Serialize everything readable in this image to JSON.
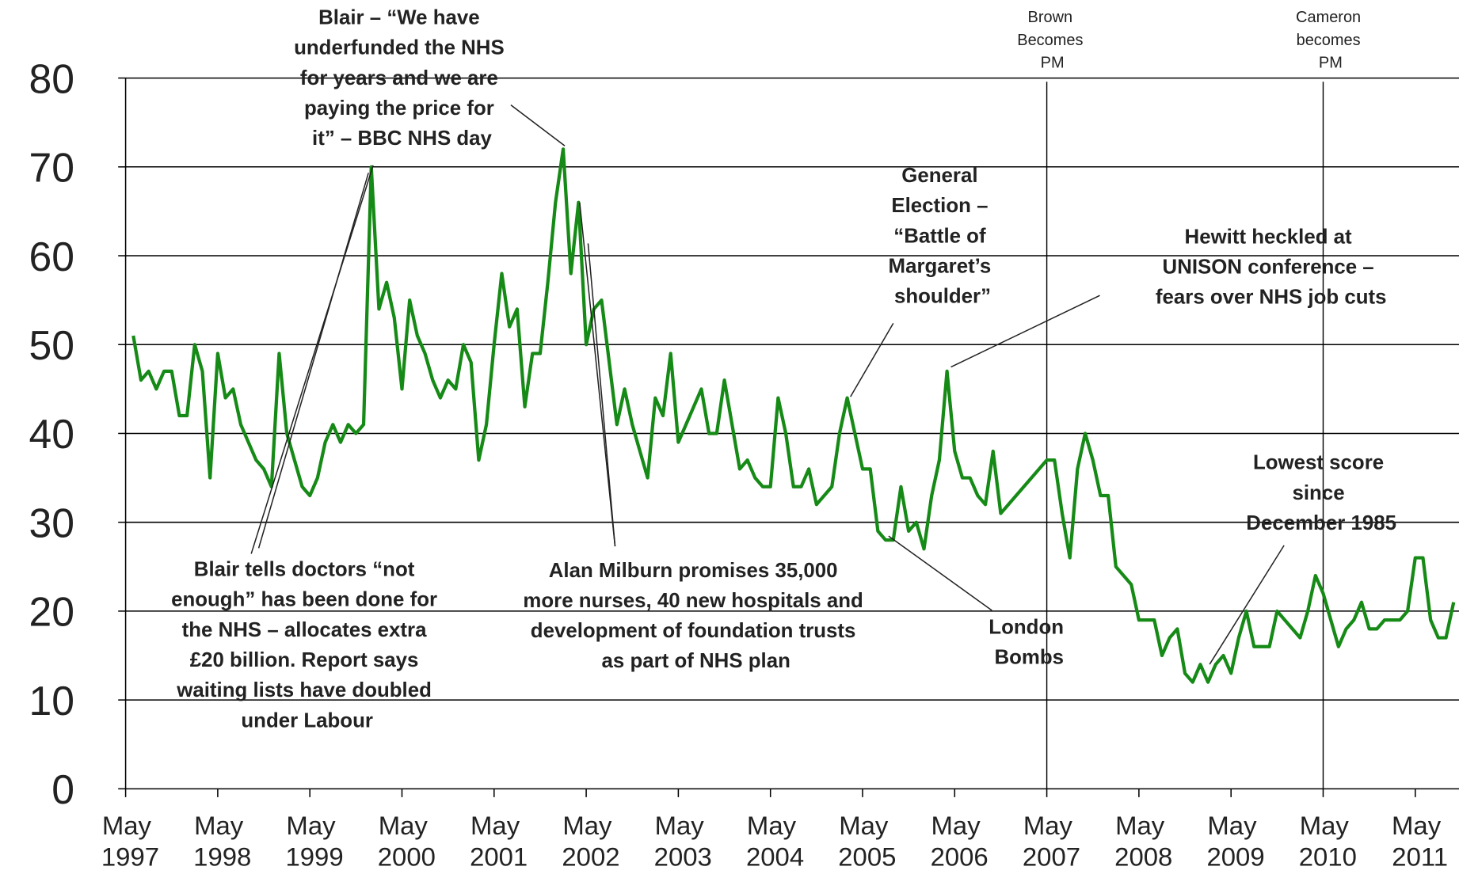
{
  "chart_data": {
    "type": "line",
    "x": [
      "1997-06",
      "1997-07",
      "1997-08",
      "1997-09",
      "1997-10",
      "1997-11",
      "1997-12",
      "1998-01",
      "1998-02",
      "1998-03",
      "1998-04",
      "1998-05",
      "1998-06",
      "1998-07",
      "1998-08",
      "1998-09",
      "1998-10",
      "1998-11",
      "1998-12",
      "1999-01",
      "1999-02",
      "1999-03",
      "1999-04",
      "1999-05",
      "1999-06",
      "1999-07",
      "1999-08",
      "1999-09",
      "1999-10",
      "1999-11",
      "1999-12",
      "2000-01",
      "2000-02",
      "2000-03",
      "2000-04",
      "2000-05",
      "2000-06",
      "2000-07",
      "2000-08",
      "2000-09",
      "2000-10",
      "2000-11",
      "2000-12",
      "2001-01",
      "2001-02",
      "2001-03",
      "2001-04",
      "2001-05",
      "2001-06",
      "2001-07",
      "2001-08",
      "2001-09",
      "2001-10",
      "2001-11",
      "2001-12",
      "2002-01",
      "2002-02",
      "2002-03",
      "2002-04",
      "2002-05",
      "2002-06",
      "2002-07",
      "2002-08",
      "2002-09",
      "2002-10",
      "2002-11",
      "2002-12",
      "2003-01",
      "2003-02",
      "2003-03",
      "2003-04",
      "2003-05",
      "2003-06",
      "2003-07",
      "2003-08",
      "2003-09",
      "2003-10",
      "2003-11",
      "2003-12",
      "2004-01",
      "2004-02",
      "2004-03",
      "2004-04",
      "2004-05",
      "2004-06",
      "2004-07",
      "2004-08",
      "2004-09",
      "2004-10",
      "2004-11",
      "2004-12",
      "2005-01",
      "2005-02",
      "2005-03",
      "2005-04",
      "2005-05",
      "2005-06",
      "2005-07",
      "2005-08",
      "2005-09",
      "2005-10",
      "2005-11",
      "2005-12",
      "2006-01",
      "2006-02",
      "2006-03",
      "2006-04",
      "2006-05",
      "2006-06",
      "2006-07",
      "2006-08",
      "2006-09",
      "2006-10",
      "2006-11",
      "2007-04",
      "2007-05",
      "2007-06",
      "2007-07",
      "2007-08",
      "2007-09",
      "2007-10",
      "2007-11",
      "2007-12",
      "2008-01",
      "2008-02",
      "2008-03",
      "2008-04",
      "2008-05",
      "2008-06",
      "2008-07",
      "2008-08",
      "2008-09",
      "2008-10",
      "2008-11",
      "2008-12",
      "2009-01",
      "2009-02",
      "2009-03",
      "2009-04",
      "2009-05",
      "2009-06",
      "2009-07",
      "2009-08",
      "2009-09",
      "2009-10",
      "2009-11",
      "2009-12",
      "2010-01",
      "2010-02",
      "2010-03",
      "2010-04",
      "2010-05",
      "2010-06",
      "2010-07",
      "2010-08",
      "2010-09",
      "2010-10",
      "2010-11",
      "2010-12",
      "2011-01",
      "2011-02",
      "2011-03",
      "2011-04",
      "2011-05",
      "2011-06",
      "2011-07",
      "2011-08",
      "2011-09",
      "2011-10"
    ],
    "series": [
      {
        "color": "#168a16",
        "values": [
          51,
          46,
          47,
          45,
          47,
          47,
          42,
          42,
          50,
          47,
          35,
          49,
          44,
          45,
          41,
          39,
          37,
          36,
          34,
          49,
          40,
          37,
          34,
          33,
          35,
          39,
          41,
          39,
          41,
          40,
          41,
          70,
          54,
          57,
          53,
          45,
          55,
          51,
          49,
          46,
          44,
          46,
          45,
          50,
          48,
          37,
          41,
          50,
          58,
          52,
          54,
          43,
          49,
          49,
          57,
          66,
          72,
          58,
          66,
          50,
          54,
          55,
          48,
          41,
          45,
          41,
          38,
          35,
          44,
          42,
          49,
          39,
          41,
          43,
          45,
          40,
          40,
          46,
          41,
          36,
          37,
          35,
          34,
          34,
          44,
          40,
          34,
          34,
          36,
          32,
          33,
          34,
          40,
          44,
          40,
          36,
          36,
          29,
          28,
          28,
          34,
          29,
          30,
          27,
          33,
          37,
          47,
          38,
          35,
          35,
          33,
          32,
          38,
          31,
          36,
          37,
          37,
          31,
          26,
          36,
          40,
          37,
          33,
          33,
          25,
          24,
          23,
          19,
          19,
          19,
          15,
          17,
          18,
          13,
          12,
          14,
          12,
          14,
          15,
          13,
          17,
          20,
          16,
          16,
          16,
          20,
          19,
          18,
          17,
          20,
          24,
          22,
          19,
          16,
          18,
          19,
          21,
          18,
          18,
          19,
          19,
          19,
          20,
          26,
          26,
          19,
          17,
          17,
          21
        ]
      }
    ],
    "xlim": [
      "1997-05",
      "2011-11"
    ],
    "xticks": [
      {
        "value": "1997-05",
        "label": "May 1997"
      },
      {
        "value": "1998-05",
        "label": "May 1998"
      },
      {
        "value": "1999-05",
        "label": "May 1999"
      },
      {
        "value": "2000-05",
        "label": "May 2000"
      },
      {
        "value": "2001-05",
        "label": "May 2001"
      },
      {
        "value": "2002-05",
        "label": "May 2002"
      },
      {
        "value": "2003-05",
        "label": "May 2003"
      },
      {
        "value": "2004-05",
        "label": "May 2004"
      },
      {
        "value": "2005-05",
        "label": "May 2005"
      },
      {
        "value": "2006-05",
        "label": "May 2006"
      },
      {
        "value": "2007-05",
        "label": "May 2007"
      },
      {
        "value": "2008-05",
        "label": "May 2008"
      },
      {
        "value": "2009-05",
        "label": "May 2009"
      },
      {
        "value": "2010-05",
        "label": "May 2010"
      },
      {
        "value": "2011-05",
        "label": "May 2011"
      }
    ],
    "ylim": [
      0,
      80
    ],
    "yticks": [
      0,
      10,
      20,
      30,
      40,
      50,
      60,
      70,
      80
    ],
    "grid": true,
    "reference_lines": [
      {
        "x": "2007-05",
        "label": "Brown\nBecomes\nPM"
      },
      {
        "x": "2010-05",
        "label": "Cameron\nbecomes\nPM"
      }
    ],
    "annotations": [
      {
        "text": "Blair – “We have\nunderfunded the NHS\nfor years and we are\npaying the price for\nit” – BBC NHS day"
      },
      {
        "text": "Blair tells doctors “not\nenough” has been done for\nthe NHS – allocates extra\n£20 billion. Report says\nwaiting lists have doubled\nunder Labour"
      },
      {
        "text": "Alan Milburn promises 35,000\nmore nurses, 40 new hospitals and\ndevelopment of foundation trusts\nas part of NHS plan"
      },
      {
        "text": "General\nElection –\n“Battle of\nMargaret’s\nshoulder”"
      },
      {
        "text": "Hewitt heckled at\nUNISON conference –\nfears over NHS job cuts"
      },
      {
        "text": "London\nBombs"
      },
      {
        "text": "Lowest score\nsince\nDecember 1985"
      }
    ]
  }
}
